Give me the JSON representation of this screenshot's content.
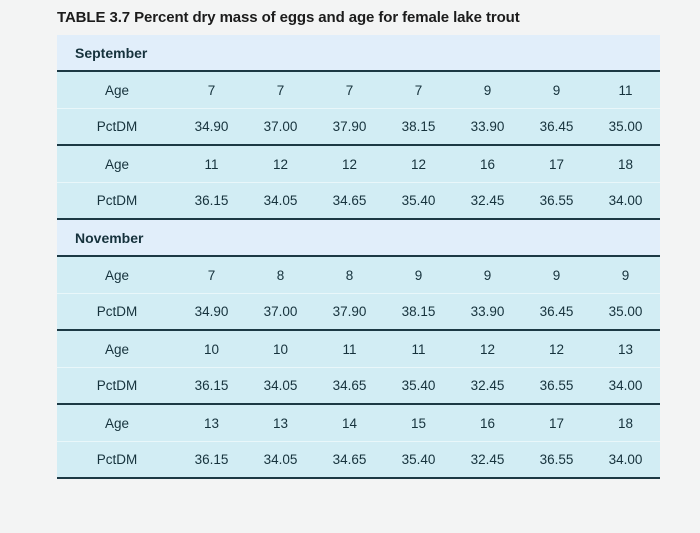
{
  "title": "TABLE 3.7 Percent dry mass of eggs and age for female lake trout",
  "colors": {
    "page_bg": "#f3f4f4",
    "header_bg": "#e1eefa",
    "row_bg": "#d2edf4",
    "divider": "#1c3944",
    "light_sep": "#e9f7fa",
    "text": "#16323c",
    "title_text": "#1c1c1c"
  },
  "table": {
    "sections": [
      {
        "name": "September",
        "rows": [
          {
            "label": "Age",
            "values": [
              "7",
              "7",
              "7",
              "7",
              "9",
              "9",
              "11"
            ]
          },
          {
            "label": "PctDM",
            "values": [
              "34.90",
              "37.00",
              "37.90",
              "38.15",
              "33.90",
              "36.45",
              "35.00"
            ]
          },
          {
            "label": "Age",
            "values": [
              "11",
              "12",
              "12",
              "12",
              "16",
              "17",
              "18"
            ]
          },
          {
            "label": "PctDM",
            "values": [
              "36.15",
              "34.05",
              "34.65",
              "35.40",
              "32.45",
              "36.55",
              "34.00"
            ]
          }
        ]
      },
      {
        "name": "November",
        "rows": [
          {
            "label": "Age",
            "values": [
              "7",
              "8",
              "8",
              "9",
              "9",
              "9",
              "9"
            ]
          },
          {
            "label": "PctDM",
            "values": [
              "34.90",
              "37.00",
              "37.90",
              "38.15",
              "33.90",
              "36.45",
              "35.00"
            ]
          },
          {
            "label": "Age",
            "values": [
              "10",
              "10",
              "11",
              "11",
              "12",
              "12",
              "13"
            ]
          },
          {
            "label": "PctDM",
            "values": [
              "36.15",
              "34.05",
              "34.65",
              "35.40",
              "32.45",
              "36.55",
              "34.00"
            ]
          },
          {
            "label": "Age",
            "values": [
              "13",
              "13",
              "14",
              "15",
              "16",
              "17",
              "18"
            ]
          },
          {
            "label": "PctDM",
            "values": [
              "36.15",
              "34.05",
              "34.65",
              "35.40",
              "32.45",
              "36.55",
              "34.00"
            ]
          }
        ]
      }
    ]
  }
}
